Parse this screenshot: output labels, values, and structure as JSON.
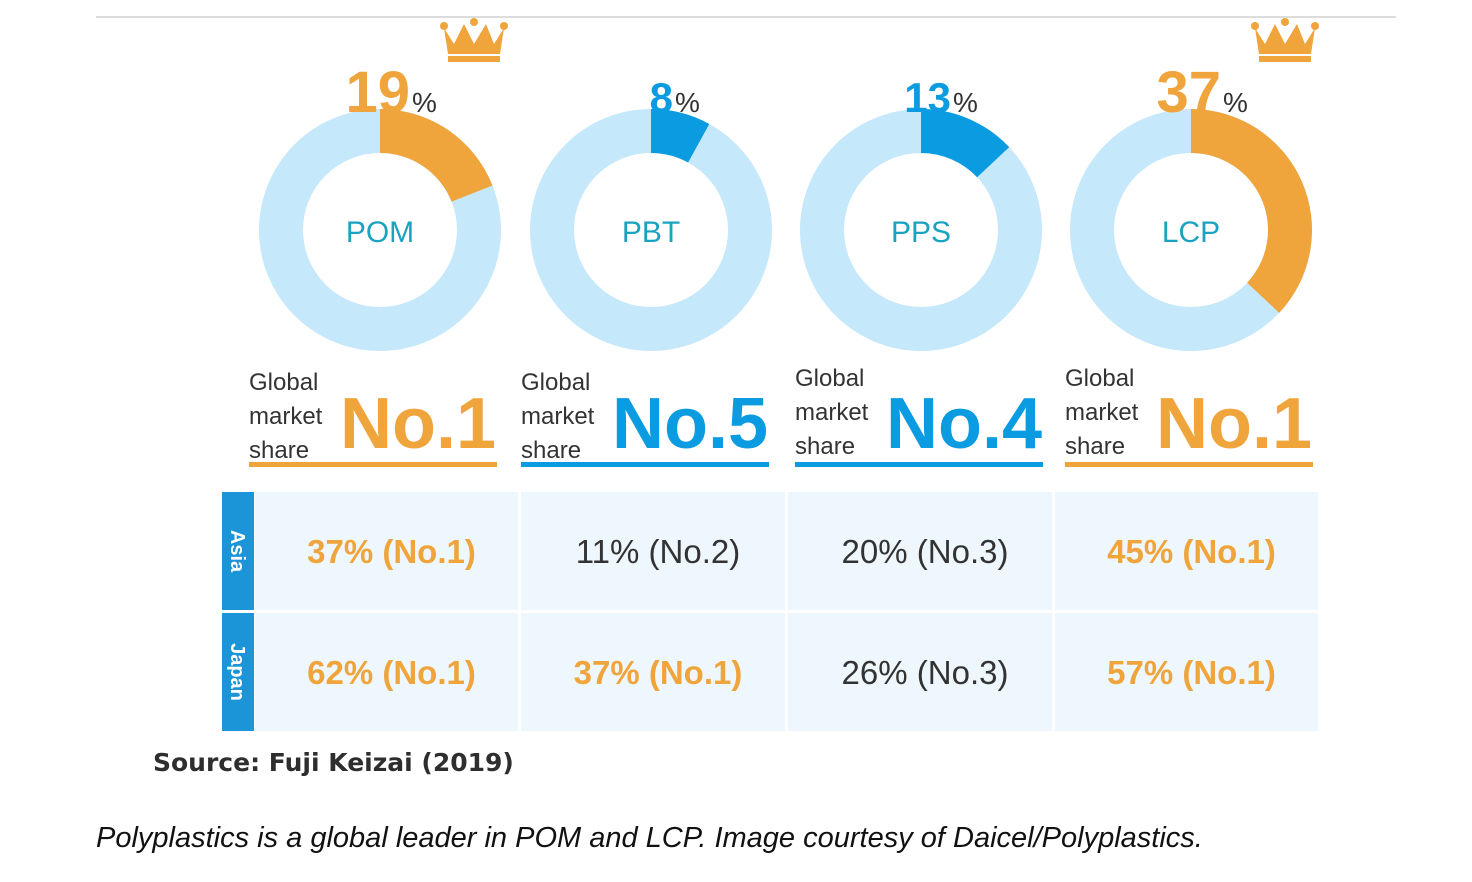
{
  "colors": {
    "orange": "#f0a43c",
    "blue": "#0a9be0",
    "ring": "#c6e8fb",
    "label_teal": "#1aa3c0",
    "table_bg": "#eef7fd",
    "region_bar": "#1c94d8",
    "dark_text": "#333333"
  },
  "chart_data": {
    "type": "pie",
    "variant": "donut",
    "items": [
      {
        "material": "POM",
        "share": 19,
        "share_label": "19",
        "unit": "%",
        "rank_prefix": "Global market share",
        "rank": "No.1",
        "leader": true,
        "color": "orange",
        "crown": true
      },
      {
        "material": "PBT",
        "share": 8,
        "share_label": "8",
        "unit": "%",
        "rank_prefix": "Global market share",
        "rank": "No.5",
        "leader": false,
        "color": "blue",
        "crown": false
      },
      {
        "material": "PPS",
        "share": 13,
        "share_label": "13",
        "unit": "%",
        "rank_prefix": "Global market share",
        "rank": "No.4",
        "leader": false,
        "color": "blue",
        "crown": false
      },
      {
        "material": "LCP",
        "share": 37,
        "share_label": "37",
        "unit": "%",
        "rank_prefix": "Global market share",
        "rank": "No.1",
        "leader": true,
        "color": "orange",
        "crown": true
      }
    ],
    "regions": [
      "Asia",
      "Japan"
    ],
    "table": [
      [
        {
          "text": "37% (No.1)",
          "leader": true
        },
        {
          "text": "11% (No.2)",
          "leader": false
        },
        {
          "text": "20% (No.3)",
          "leader": false
        },
        {
          "text": "45% (No.1)",
          "leader": true
        }
      ],
      [
        {
          "text": "62% (No.1)",
          "leader": true
        },
        {
          "text": "37% (No.1)",
          "leader": true
        },
        {
          "text": "26% (No.3)",
          "leader": false
        },
        {
          "text": "57% (No.1)",
          "leader": true
        }
      ]
    ],
    "source": "Source: Fuji Keizai (2019)"
  },
  "caption": "Polyplastics is a global leader in POM and LCP. Image courtesy of Daicel/Polyplastics."
}
